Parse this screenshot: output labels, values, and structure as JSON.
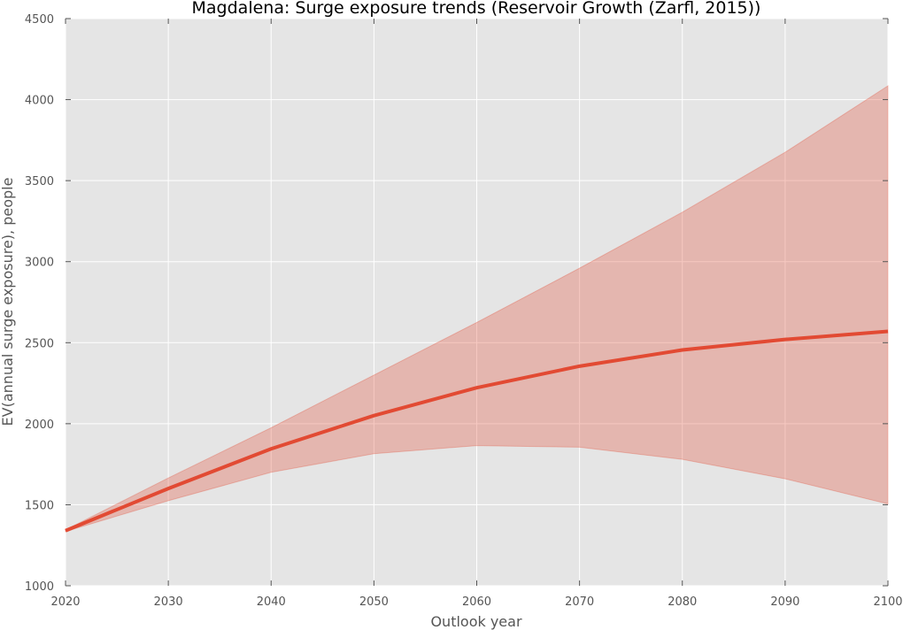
{
  "chart_data": {
    "type": "line",
    "title": "Magdalena: Surge exposure trends (Reservoir Growth (Zarfl, 2015))",
    "xlabel": "Outlook year",
    "ylabel": "EV(annual surge exposure), people",
    "xlim": [
      2020,
      2100
    ],
    "ylim": [
      1000,
      4500
    ],
    "x_ticks": [
      "2020",
      "2030",
      "2040",
      "2050",
      "2060",
      "2070",
      "2080",
      "2090",
      "2100"
    ],
    "y_ticks": [
      "1000",
      "1500",
      "2000",
      "2500",
      "3000",
      "3500",
      "4000",
      "4500"
    ],
    "grid": true,
    "x": [
      2020,
      2030,
      2040,
      2050,
      2060,
      2070,
      2080,
      2090,
      2100
    ],
    "series": [
      {
        "values": [
          1340,
          1600,
          1845,
          2050,
          2222,
          2355,
          2455,
          2520,
          2570
        ],
        "lower": [
          1335,
          1525,
          1700,
          1815,
          1865,
          1855,
          1780,
          1660,
          1505
        ],
        "upper": [
          1345,
          1665,
          1975,
          2300,
          2625,
          2960,
          3305,
          3675,
          4085
        ],
        "color": "#e24a33",
        "band_color": "#e24a33"
      }
    ],
    "colors": {
      "plot_background": "#e5e5e5",
      "grid": "#ffffff",
      "line": "#e24a33"
    }
  }
}
